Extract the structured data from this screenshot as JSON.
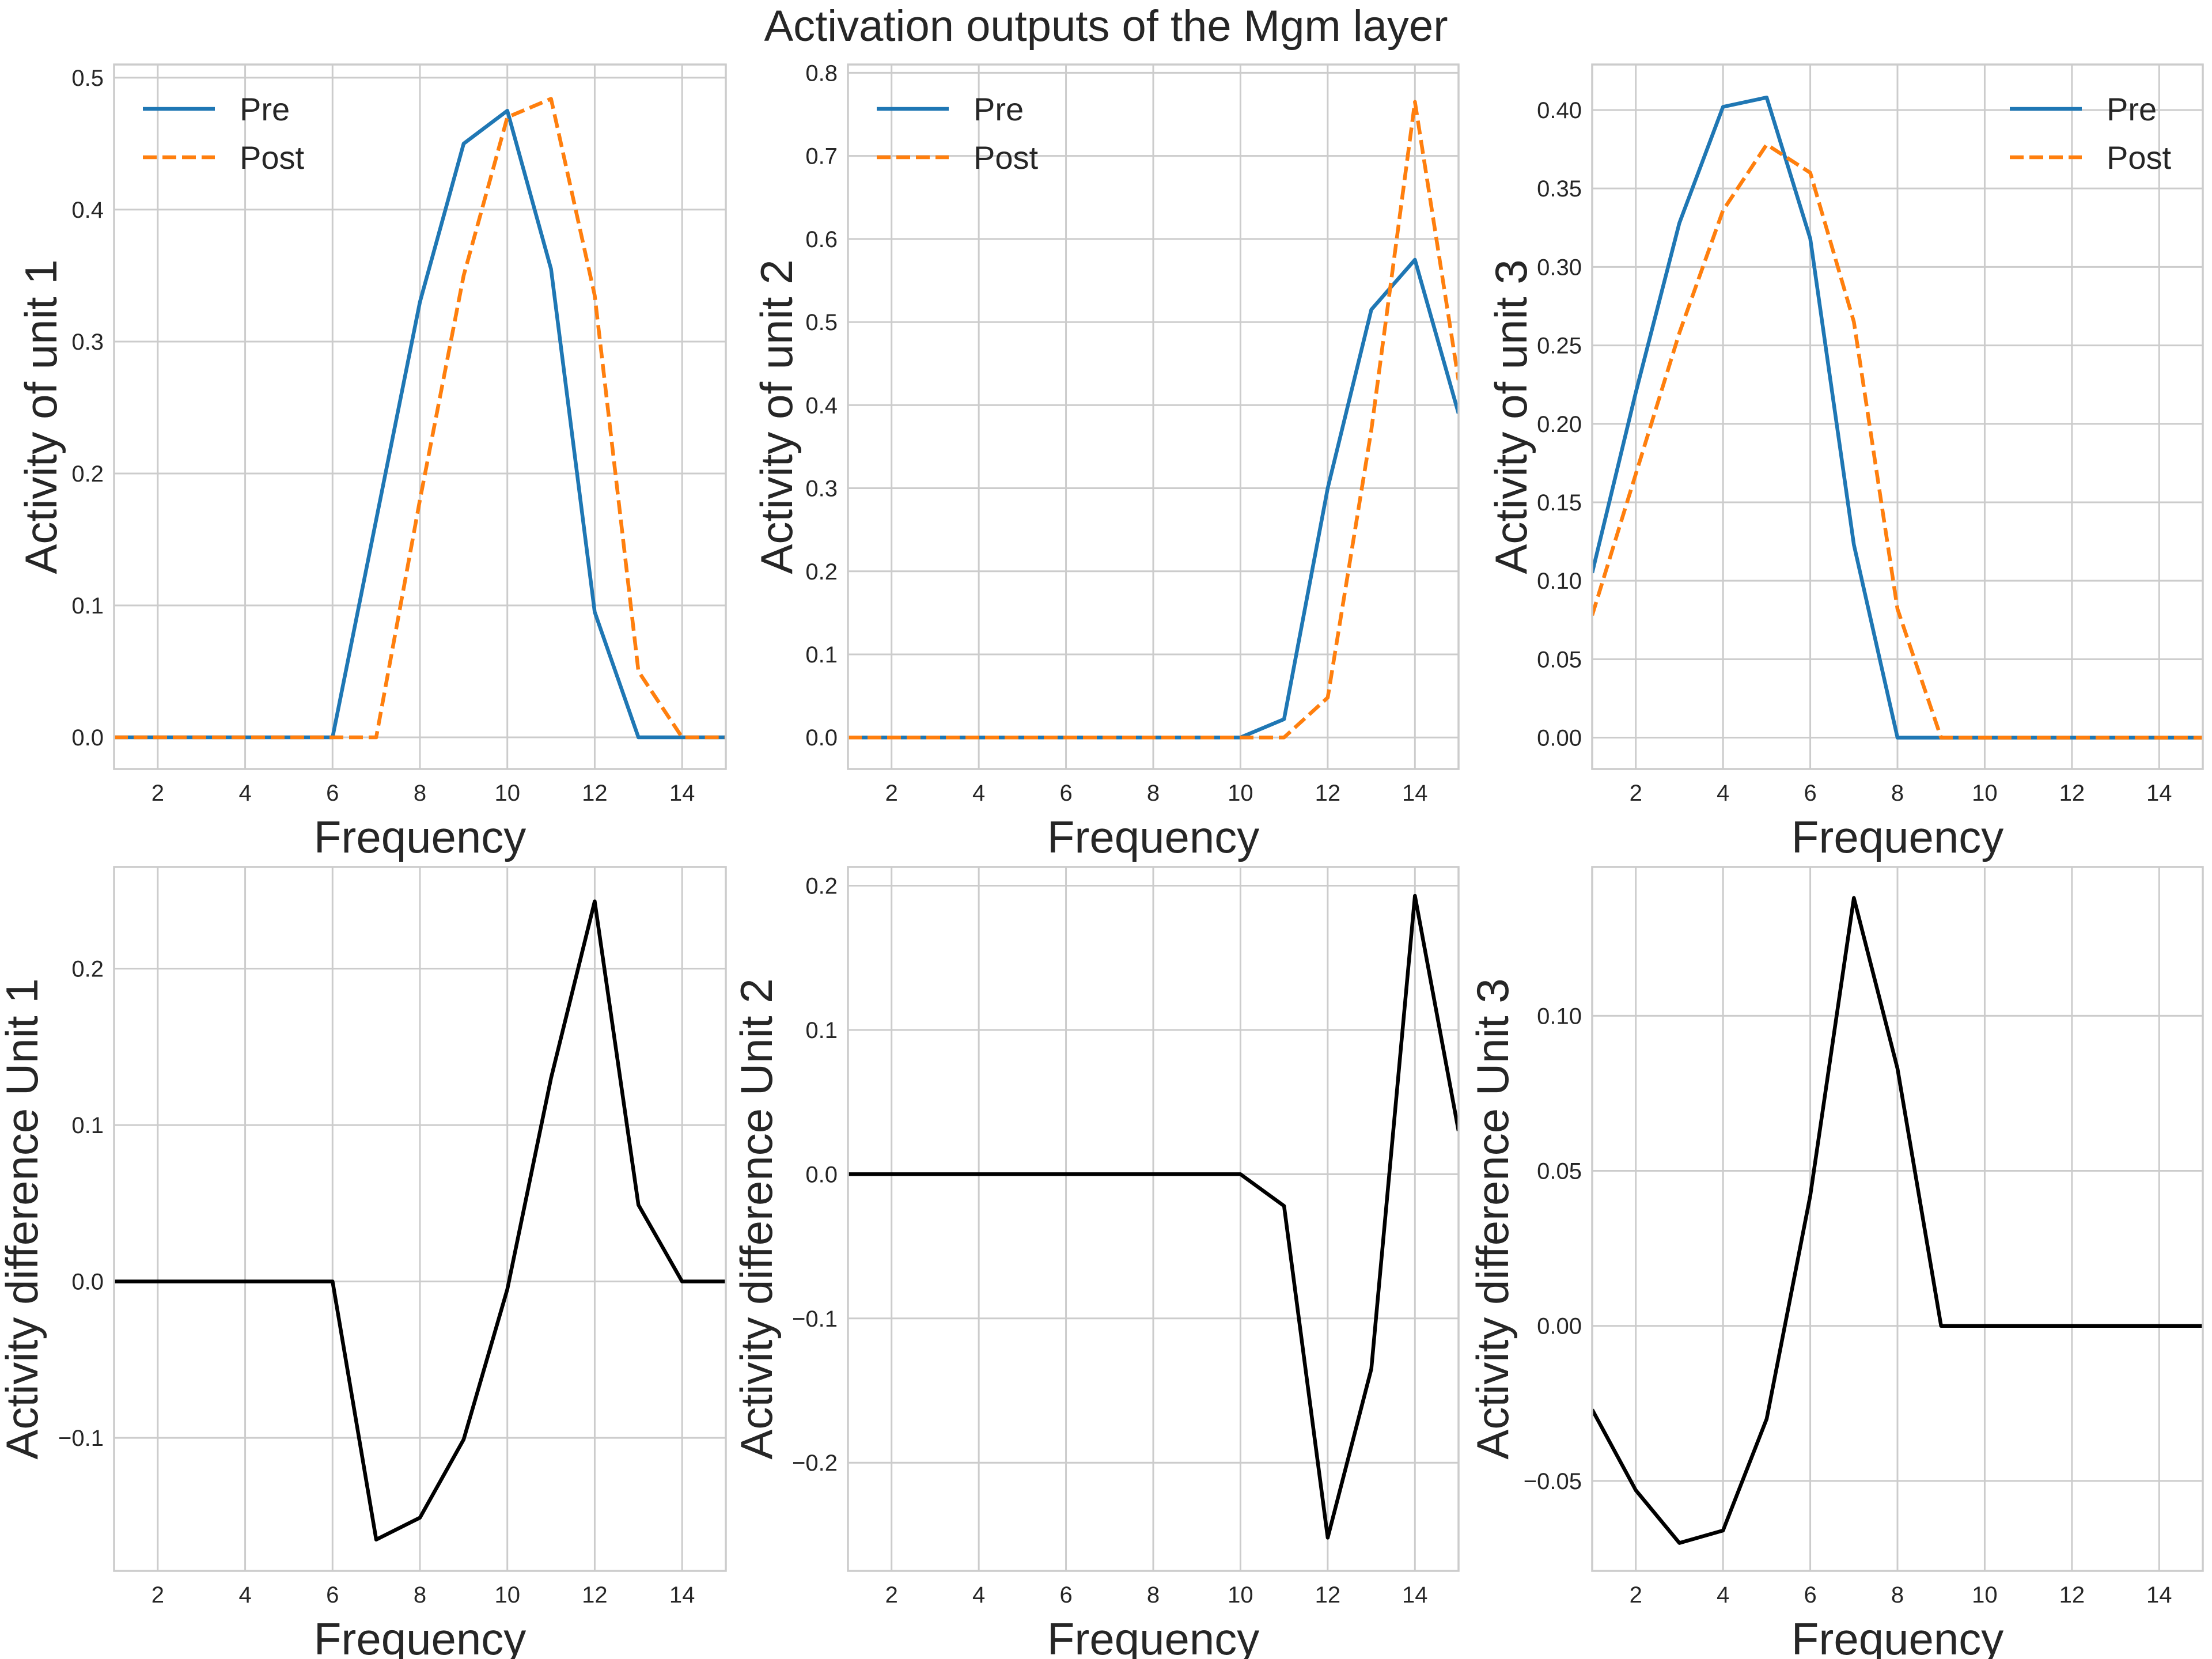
{
  "figure": {
    "title": "Activation outputs of the Mgm layer"
  },
  "chart_data": [
    {
      "type": "line",
      "xlabel": "Frequency",
      "ylabel": "Activity of unit 1",
      "xlim": [
        1,
        15
      ],
      "ylim": [
        -0.024,
        0.51
      ],
      "xticks": [
        2,
        4,
        6,
        8,
        10,
        12,
        14
      ],
      "yticks": [
        0.0,
        0.1,
        0.2,
        0.3,
        0.4,
        0.5
      ],
      "ytick_labels": [
        "0.0",
        "0.1",
        "0.2",
        "0.3",
        "0.4",
        "0.5"
      ],
      "grid": true,
      "legend": "upper left",
      "x": [
        1,
        2,
        3,
        4,
        5,
        6,
        7,
        8,
        9,
        10,
        11,
        12,
        13,
        14,
        15
      ],
      "series": [
        {
          "name": "Pre",
          "color": "#1f77b4",
          "style": "solid",
          "values": [
            0,
            0,
            0,
            0,
            0,
            0,
            0.165,
            0.33,
            0.45,
            0.475,
            0.355,
            0.095,
            0,
            0,
            0
          ]
        },
        {
          "name": "Post",
          "color": "#ff7f0e",
          "style": "dashed",
          "values": [
            0,
            0,
            0,
            0,
            0,
            0,
            0,
            0.18,
            0.35,
            0.47,
            0.484,
            0.335,
            0.05,
            0,
            0
          ]
        }
      ]
    },
    {
      "type": "line",
      "xlabel": "Frequency",
      "ylabel": "Activity of unit 2",
      "xlim": [
        1,
        15
      ],
      "ylim": [
        -0.038,
        0.81
      ],
      "xticks": [
        2,
        4,
        6,
        8,
        10,
        12,
        14
      ],
      "yticks": [
        0.0,
        0.1,
        0.2,
        0.3,
        0.4,
        0.5,
        0.6,
        0.7,
        0.8
      ],
      "ytick_labels": [
        "0.0",
        "0.1",
        "0.2",
        "0.3",
        "0.4",
        "0.5",
        "0.6",
        "0.7",
        "0.8"
      ],
      "grid": true,
      "legend": "upper left",
      "x": [
        1,
        2,
        3,
        4,
        5,
        6,
        7,
        8,
        9,
        10,
        11,
        12,
        13,
        14,
        15
      ],
      "series": [
        {
          "name": "Pre",
          "color": "#1f77b4",
          "style": "solid",
          "values": [
            0,
            0,
            0,
            0,
            0,
            0,
            0,
            0,
            0,
            0,
            0.022,
            0.3,
            0.515,
            0.575,
            0.39
          ]
        },
        {
          "name": "Post",
          "color": "#ff7f0e",
          "style": "dashed",
          "values": [
            0,
            0,
            0,
            0,
            0,
            0,
            0,
            0,
            0,
            0,
            0,
            0.048,
            0.37,
            0.765,
            0.43
          ]
        }
      ]
    },
    {
      "type": "line",
      "xlabel": "Frequency",
      "ylabel": "Activity of unit 3",
      "xlim": [
        1,
        15
      ],
      "ylim": [
        -0.02,
        0.429
      ],
      "xticks": [
        2,
        4,
        6,
        8,
        10,
        12,
        14
      ],
      "yticks": [
        0.0,
        0.05,
        0.1,
        0.15,
        0.2,
        0.25,
        0.3,
        0.35,
        0.4
      ],
      "ytick_labels": [
        "0.00",
        "0.05",
        "0.10",
        "0.15",
        "0.20",
        "0.25",
        "0.30",
        "0.35",
        "0.40"
      ],
      "grid": true,
      "legend": "upper right",
      "x": [
        1,
        2,
        3,
        4,
        5,
        6,
        7,
        8,
        9,
        10,
        11,
        12,
        13,
        14,
        15
      ],
      "series": [
        {
          "name": "Pre",
          "color": "#1f77b4",
          "style": "solid",
          "values": [
            0.105,
            0.22,
            0.328,
            0.402,
            0.408,
            0.318,
            0.123,
            0,
            0,
            0,
            0,
            0,
            0,
            0,
            0
          ]
        },
        {
          "name": "Post",
          "color": "#ff7f0e",
          "style": "dashed",
          "values": [
            0.078,
            0.168,
            0.258,
            0.336,
            0.378,
            0.36,
            0.265,
            0.082,
            0,
            0,
            0,
            0,
            0,
            0,
            0
          ]
        }
      ]
    },
    {
      "type": "line",
      "xlabel": "Frequency",
      "ylabel": "Activity difference Unit 1",
      "xlim": [
        1,
        15
      ],
      "ylim": [
        -0.185,
        0.265
      ],
      "xticks": [
        2,
        4,
        6,
        8,
        10,
        12,
        14
      ],
      "yticks": [
        -0.1,
        0.0,
        0.1,
        0.2
      ],
      "ytick_labels": [
        "−0.1",
        "0.0",
        "0.1",
        "0.2"
      ],
      "grid": true,
      "legend": "none",
      "x": [
        1,
        2,
        3,
        4,
        5,
        6,
        7,
        8,
        9,
        10,
        11,
        12,
        13,
        14,
        15
      ],
      "series": [
        {
          "color": "#000000",
          "style": "solid",
          "values": [
            0,
            0,
            0,
            0,
            0,
            0,
            -0.165,
            -0.151,
            -0.101,
            -0.005,
            0.13,
            0.243,
            0.049,
            0,
            0
          ]
        }
      ]
    },
    {
      "type": "line",
      "xlabel": "Frequency",
      "ylabel": "Activity difference Unit 2",
      "xlim": [
        1,
        15
      ],
      "ylim": [
        -0.275,
        0.213
      ],
      "xticks": [
        2,
        4,
        6,
        8,
        10,
        12,
        14
      ],
      "yticks": [
        -0.2,
        -0.1,
        0.0,
        0.1,
        0.2
      ],
      "ytick_labels": [
        "−0.2",
        "−0.1",
        "0.0",
        "0.1",
        "0.2"
      ],
      "grid": true,
      "legend": "none",
      "x": [
        1,
        2,
        3,
        4,
        5,
        6,
        7,
        8,
        9,
        10,
        11,
        12,
        13,
        14,
        15
      ],
      "series": [
        {
          "color": "#000000",
          "style": "solid",
          "values": [
            0,
            0,
            0,
            0,
            0,
            0,
            0,
            0,
            0,
            0,
            -0.022,
            -0.252,
            -0.135,
            0.193,
            0.03
          ]
        }
      ]
    },
    {
      "type": "line",
      "xlabel": "Frequency",
      "ylabel": "Activity difference Unit 3",
      "xlim": [
        1,
        15
      ],
      "ylim": [
        -0.079,
        0.148
      ],
      "xticks": [
        2,
        4,
        6,
        8,
        10,
        12,
        14
      ],
      "yticks": [
        -0.05,
        0.0,
        0.05,
        0.1
      ],
      "ytick_labels": [
        "−0.05",
        "0.00",
        "0.05",
        "0.10"
      ],
      "grid": true,
      "legend": "none",
      "x": [
        1,
        2,
        3,
        4,
        5,
        6,
        7,
        8,
        9,
        10,
        11,
        12,
        13,
        14,
        15
      ],
      "series": [
        {
          "color": "#000000",
          "style": "solid",
          "values": [
            -0.027,
            -0.053,
            -0.07,
            -0.066,
            -0.03,
            0.042,
            0.138,
            0.083,
            0,
            0,
            0,
            0,
            0,
            0,
            0
          ]
        }
      ]
    }
  ]
}
